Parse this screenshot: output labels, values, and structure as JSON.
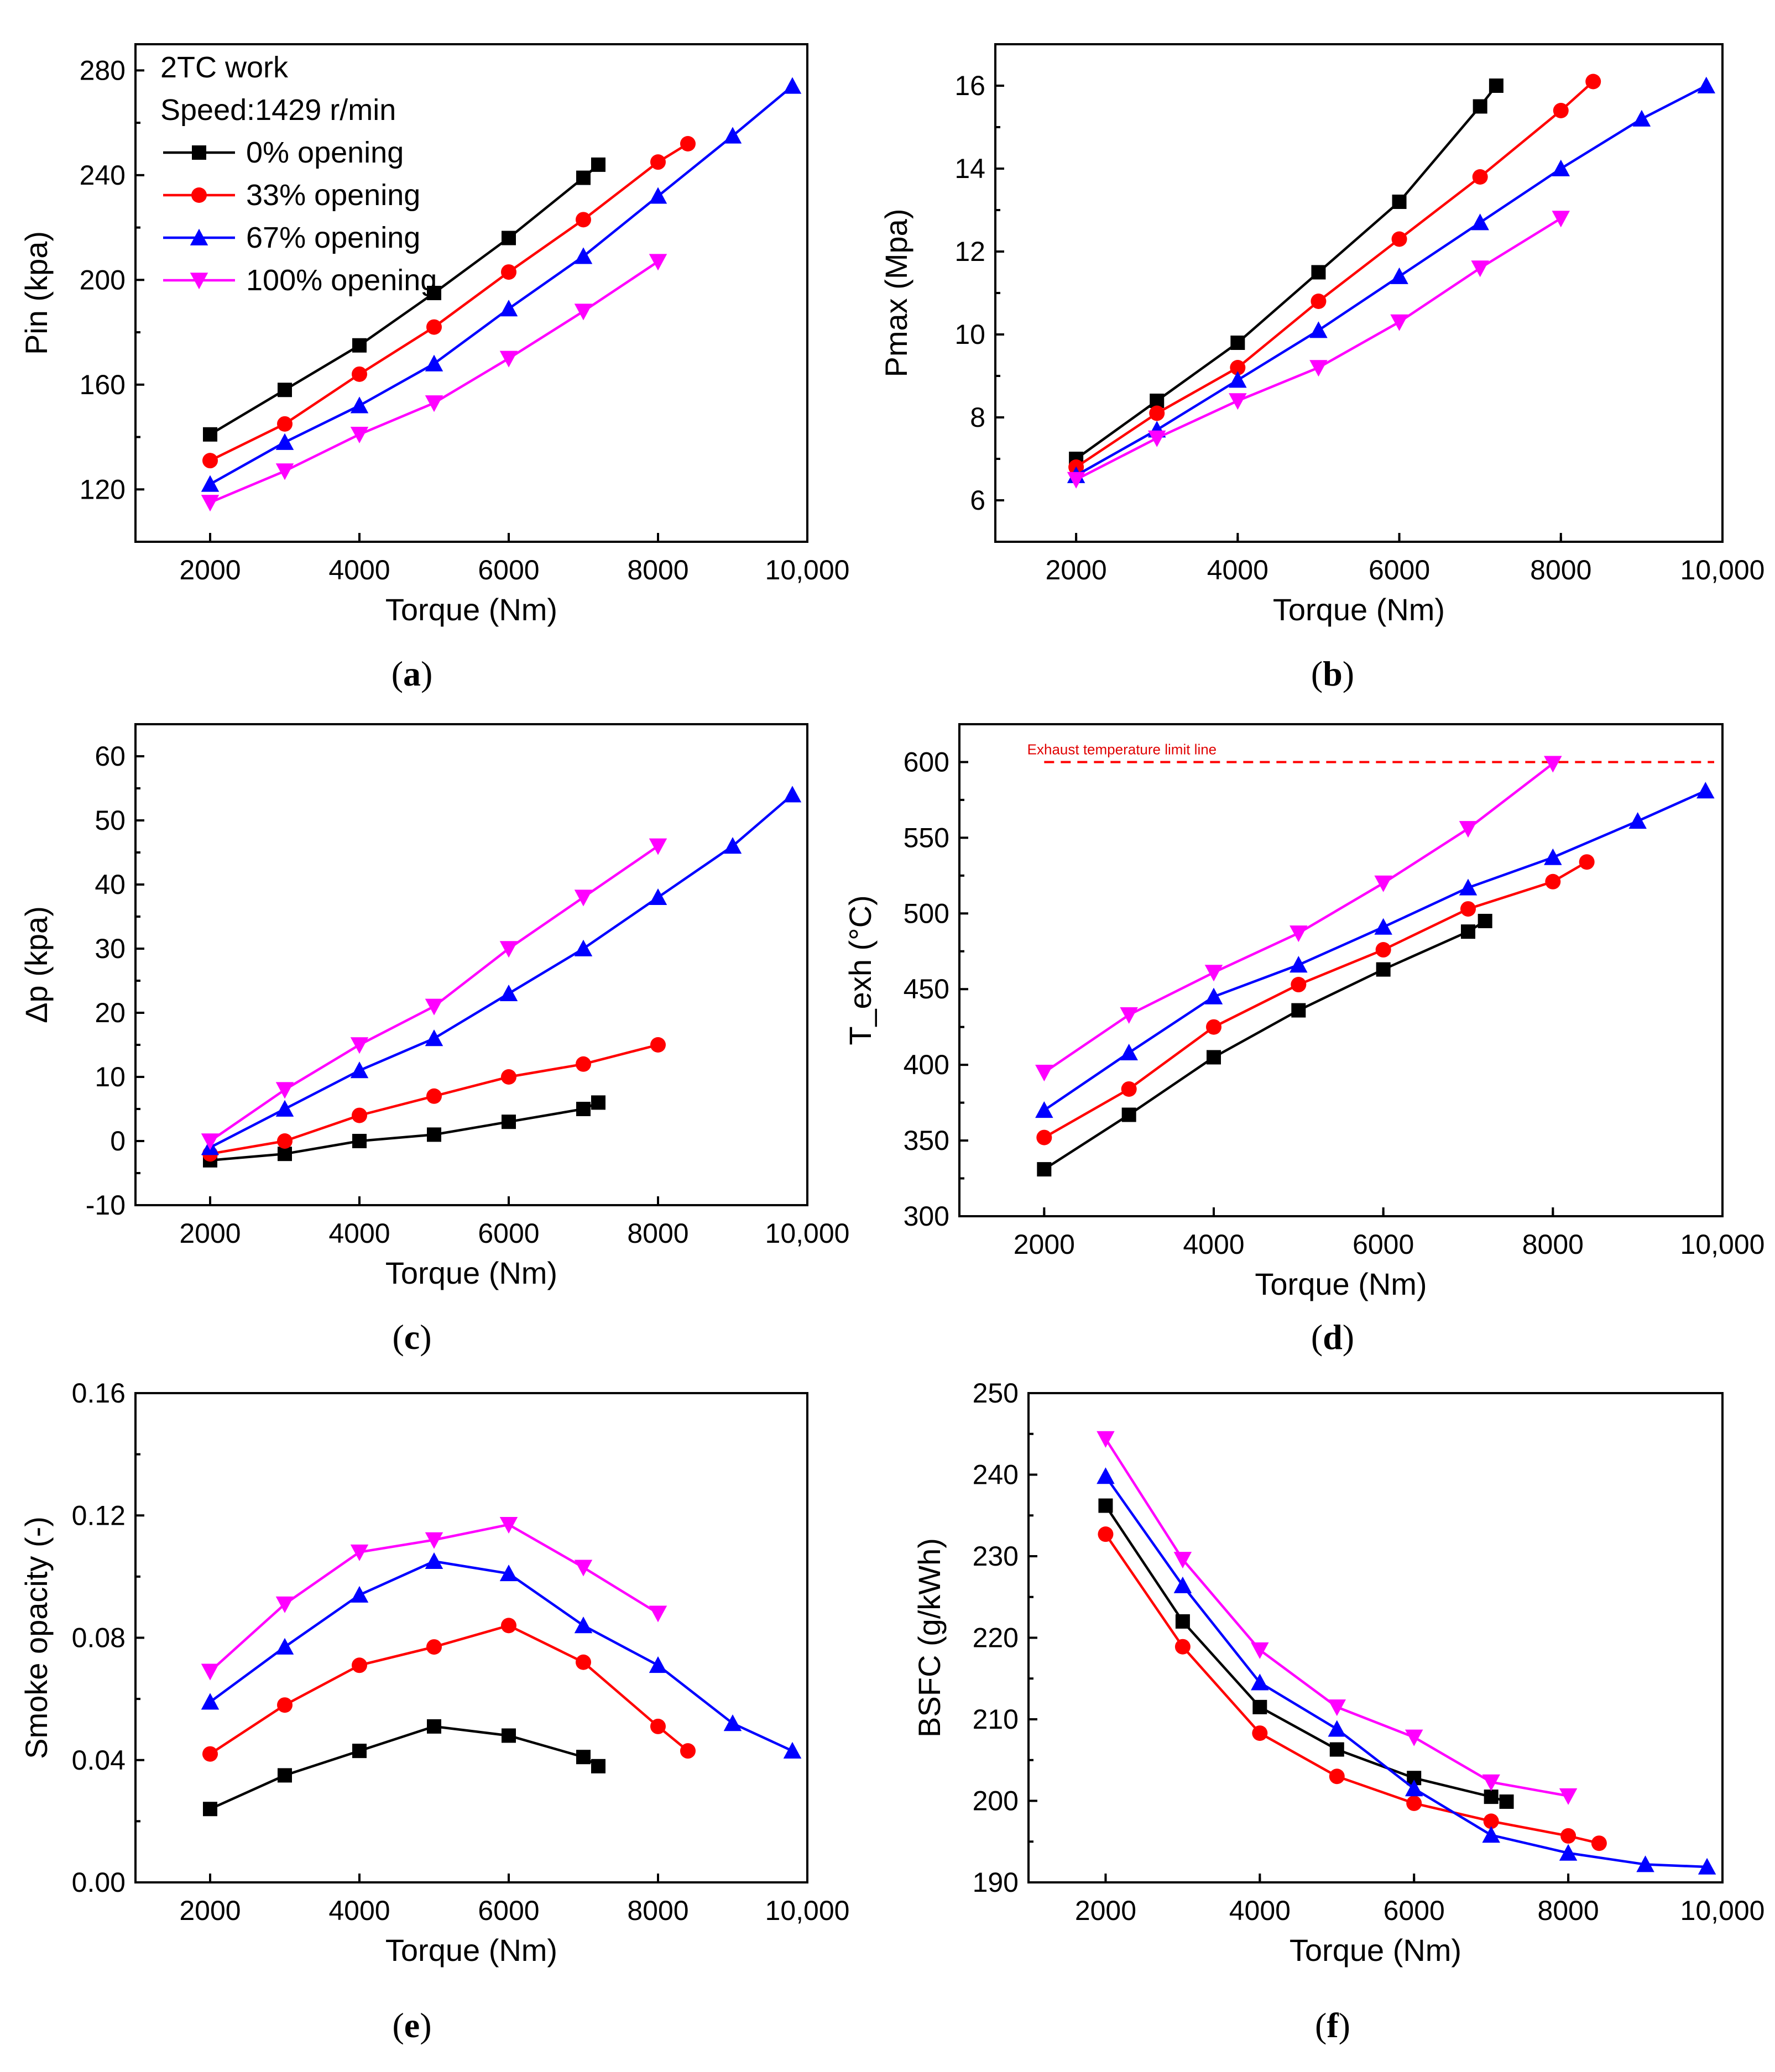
{
  "colors": {
    "0% opening": "#000000",
    "33% opening": "#ff0000",
    "67% opening": "#0000ff",
    "100% opening": "#ff00ff"
  },
  "legend": {
    "lines": [
      "2TC work",
      "Speed:1429 r/min"
    ],
    "entries": [
      "0% opening",
      "33% opening",
      "67% opening",
      "100% opening"
    ]
  },
  "chart_data": [
    {
      "id": "a",
      "panel_label": "a",
      "type": "line",
      "xlabel": "Torque (Nm)",
      "ylabel": "Pin (kpa)",
      "xlim": [
        1000,
        10000
      ],
      "ylim": [
        100,
        290
      ],
      "xticks": [
        2000,
        4000,
        6000,
        8000,
        10000
      ],
      "xtick_labels": [
        "2000",
        "4000",
        "6000",
        "8000",
        "10,000"
      ],
      "yticks": [
        120,
        160,
        200,
        240,
        280
      ],
      "ytick_labels": [
        "120",
        "160",
        "200",
        "240",
        "280"
      ],
      "series": [
        {
          "name": "0% opening",
          "marker": "square",
          "x": [
            2000,
            3000,
            4000,
            5000,
            6000,
            7000,
            7200
          ],
          "y": [
            141,
            158,
            175,
            195,
            216,
            239,
            244
          ]
        },
        {
          "name": "33% opening",
          "marker": "circle",
          "x": [
            2000,
            3000,
            4000,
            5000,
            6000,
            7000,
            8000,
            8400
          ],
          "y": [
            131,
            145,
            164,
            182,
            203,
            223,
            245,
            252
          ]
        },
        {
          "name": "67% opening",
          "marker": "triangle-up",
          "x": [
            2000,
            3000,
            4000,
            5000,
            6000,
            7000,
            8000,
            9000,
            9800
          ],
          "y": [
            122,
            138,
            152,
            168,
            189,
            209,
            232,
            255,
            274
          ]
        },
        {
          "name": "100% opening",
          "marker": "triangle-down",
          "x": [
            2000,
            3000,
            4000,
            5000,
            6000,
            7000,
            8000
          ],
          "y": [
            115,
            127,
            141,
            153,
            170,
            188,
            207
          ]
        }
      ]
    },
    {
      "id": "b",
      "panel_label": "b",
      "type": "line",
      "xlabel": "Torque (Nm)",
      "ylabel": "Pmax (Mpa)",
      "xlim": [
        1000,
        10000
      ],
      "ylim": [
        5,
        17
      ],
      "xticks": [
        2000,
        4000,
        6000,
        8000,
        10000
      ],
      "xtick_labels": [
        "2000",
        "4000",
        "6000",
        "8000",
        "10,000"
      ],
      "yticks": [
        6,
        8,
        10,
        12,
        14,
        16
      ],
      "ytick_labels": [
        "6",
        "8",
        "10",
        "12",
        "14",
        "16"
      ],
      "series": [
        {
          "name": "0% opening",
          "marker": "square",
          "x": [
            2000,
            3000,
            4000,
            5000,
            6000,
            7000,
            7200
          ],
          "y": [
            7.0,
            8.4,
            9.8,
            11.5,
            13.2,
            15.5,
            16.0
          ]
        },
        {
          "name": "33% opening",
          "marker": "circle",
          "x": [
            2000,
            3000,
            4000,
            5000,
            6000,
            7000,
            8000,
            8400
          ],
          "y": [
            6.8,
            8.1,
            9.2,
            10.8,
            12.3,
            13.8,
            15.4,
            16.1
          ]
        },
        {
          "name": "67% opening",
          "marker": "triangle-up",
          "x": [
            2000,
            3000,
            4000,
            5000,
            6000,
            7000,
            8000,
            9000,
            9800
          ],
          "y": [
            6.6,
            7.7,
            8.9,
            10.1,
            11.4,
            12.7,
            14.0,
            15.2,
            16.0
          ]
        },
        {
          "name": "100% opening",
          "marker": "triangle-down",
          "x": [
            2000,
            3000,
            4000,
            5000,
            6000,
            7000,
            8000
          ],
          "y": [
            6.5,
            7.5,
            8.4,
            9.2,
            10.3,
            11.6,
            12.8
          ]
        }
      ]
    },
    {
      "id": "c",
      "panel_label": "c",
      "type": "line",
      "xlabel": "Torque (Nm)",
      "ylabel": "Δp (kpa)",
      "xlim": [
        1000,
        10000
      ],
      "ylim": [
        -10,
        65
      ],
      "xticks": [
        2000,
        4000,
        6000,
        8000,
        10000
      ],
      "xtick_labels": [
        "2000",
        "4000",
        "6000",
        "8000",
        "10,000"
      ],
      "yticks": [
        -10,
        0,
        10,
        20,
        30,
        40,
        50,
        60
      ],
      "ytick_labels": [
        "-10",
        "0",
        "10",
        "20",
        "30",
        "40",
        "50",
        "60"
      ],
      "series": [
        {
          "name": "0% opening",
          "marker": "square",
          "x": [
            2000,
            3000,
            4000,
            5000,
            6000,
            7000,
            7200
          ],
          "y": [
            -3,
            -2,
            0,
            1,
            3,
            5,
            6
          ]
        },
        {
          "name": "33% opening",
          "marker": "circle",
          "x": [
            2000,
            3000,
            4000,
            5000,
            6000,
            7000,
            8000
          ],
          "y": [
            -2,
            0,
            4,
            7,
            10,
            12,
            15
          ]
        },
        {
          "name": "67% opening",
          "marker": "triangle-up",
          "x": [
            2000,
            3000,
            4000,
            5000,
            6000,
            7000,
            8000,
            9000,
            9800
          ],
          "y": [
            -1,
            5,
            11,
            16,
            23,
            30,
            38,
            46,
            54
          ]
        },
        {
          "name": "100% opening",
          "marker": "triangle-down",
          "x": [
            2000,
            3000,
            4000,
            5000,
            6000,
            7000,
            8000
          ],
          "y": [
            0,
            8,
            15,
            21,
            30,
            38,
            46
          ]
        }
      ]
    },
    {
      "id": "d",
      "panel_label": "d",
      "type": "line",
      "xlabel": "Torque (Nm)",
      "ylabel": "T_exh (°C)",
      "xlim": [
        1000,
        10000
      ],
      "ylim": [
        300,
        625
      ],
      "xticks": [
        2000,
        4000,
        6000,
        8000,
        10000
      ],
      "xtick_labels": [
        "2000",
        "4000",
        "6000",
        "8000",
        "10,000"
      ],
      "yticks": [
        300,
        350,
        400,
        450,
        500,
        550,
        600
      ],
      "ytick_labels": [
        "300",
        "350",
        "400",
        "450",
        "500",
        "550",
        "600"
      ],
      "annotation": {
        "text": "Exhaust temperature limit line",
        "y": 600
      },
      "series": [
        {
          "name": "0% opening",
          "marker": "square",
          "x": [
            2000,
            3000,
            4000,
            5000,
            6000,
            7000,
            7200
          ],
          "y": [
            331,
            367,
            405,
            436,
            463,
            488,
            495
          ]
        },
        {
          "name": "33% opening",
          "marker": "circle",
          "x": [
            2000,
            3000,
            4000,
            5000,
            6000,
            7000,
            8000,
            8400
          ],
          "y": [
            352,
            384,
            425,
            453,
            476,
            503,
            521,
            534
          ]
        },
        {
          "name": "67% opening",
          "marker": "triangle-up",
          "x": [
            2000,
            3000,
            4000,
            5000,
            6000,
            7000,
            8000,
            9000,
            9800
          ],
          "y": [
            370,
            408,
            445,
            466,
            491,
            517,
            537,
            561,
            581
          ]
        },
        {
          "name": "100% opening",
          "marker": "triangle-down",
          "x": [
            2000,
            3000,
            4000,
            5000,
            6000,
            7000,
            8000
          ],
          "y": [
            395,
            433,
            461,
            487,
            520,
            556,
            599
          ]
        }
      ]
    },
    {
      "id": "e",
      "panel_label": "e",
      "type": "line",
      "xlabel": "Torque (Nm)",
      "ylabel": "Smoke opacity (-)",
      "xlim": [
        1000,
        10000
      ],
      "ylim": [
        0,
        0.16
      ],
      "xticks": [
        2000,
        4000,
        6000,
        8000,
        10000
      ],
      "xtick_labels": [
        "2000",
        "4000",
        "6000",
        "8000",
        "10,000"
      ],
      "yticks": [
        0,
        0.04,
        0.08,
        0.12,
        0.16
      ],
      "ytick_labels": [
        "0.00",
        "0.04",
        "0.08",
        "0.12",
        "0.16"
      ],
      "series": [
        {
          "name": "0% opening",
          "marker": "square",
          "x": [
            2000,
            3000,
            4000,
            5000,
            6000,
            7000,
            7200
          ],
          "y": [
            0.024,
            0.035,
            0.043,
            0.051,
            0.048,
            0.041,
            0.038
          ]
        },
        {
          "name": "33% opening",
          "marker": "circle",
          "x": [
            2000,
            3000,
            4000,
            5000,
            6000,
            7000,
            8000,
            8400
          ],
          "y": [
            0.042,
            0.058,
            0.071,
            0.077,
            0.084,
            0.072,
            0.051,
            0.043
          ]
        },
        {
          "name": "67% opening",
          "marker": "triangle-up",
          "x": [
            2000,
            3000,
            4000,
            5000,
            6000,
            7000,
            8000,
            9000,
            9800
          ],
          "y": [
            0.059,
            0.077,
            0.094,
            0.105,
            0.101,
            0.084,
            0.071,
            0.052,
            0.043
          ]
        },
        {
          "name": "100% opening",
          "marker": "triangle-down",
          "x": [
            2000,
            3000,
            4000,
            5000,
            6000,
            7000,
            8000
          ],
          "y": [
            0.069,
            0.091,
            0.108,
            0.112,
            0.117,
            0.103,
            0.088
          ]
        }
      ]
    },
    {
      "id": "f",
      "panel_label": "f",
      "type": "line",
      "xlabel": "Torque (Nm)",
      "ylabel": "BSFC (g/kWh)",
      "xlim": [
        1000,
        10000
      ],
      "ylim": [
        190,
        250
      ],
      "xticks": [
        2000,
        4000,
        6000,
        8000,
        10000
      ],
      "xtick_labels": [
        "2000",
        "4000",
        "6000",
        "8000",
        "10,000"
      ],
      "yticks": [
        190,
        200,
        210,
        220,
        230,
        240,
        250
      ],
      "ytick_labels": [
        "190",
        "200",
        "210",
        "220",
        "230",
        "240",
        "250"
      ],
      "series": [
        {
          "name": "0% opening",
          "marker": "square",
          "x": [
            2000,
            3000,
            4000,
            5000,
            6000,
            7000,
            7200
          ],
          "y": [
            236.2,
            222.0,
            211.5,
            206.3,
            202.8,
            200.5,
            199.9
          ]
        },
        {
          "name": "33% opening",
          "marker": "circle",
          "x": [
            2000,
            3000,
            4000,
            5000,
            6000,
            7000,
            8000,
            8400
          ],
          "y": [
            232.7,
            218.9,
            208.3,
            203.0,
            199.7,
            197.5,
            195.7,
            194.8
          ]
        },
        {
          "name": "67% opening",
          "marker": "triangle-up",
          "x": [
            2000,
            3000,
            4000,
            5000,
            6000,
            7000,
            8000,
            9000,
            9800
          ],
          "y": [
            239.8,
            226.4,
            214.5,
            208.8,
            201.5,
            195.8,
            193.6,
            192.2,
            191.9
          ]
        },
        {
          "name": "100% opening",
          "marker": "triangle-down",
          "x": [
            2000,
            3000,
            4000,
            5000,
            6000,
            7000,
            8000
          ],
          "y": [
            244.4,
            229.6,
            218.5,
            211.5,
            207.8,
            202.3,
            200.6
          ]
        }
      ]
    }
  ]
}
